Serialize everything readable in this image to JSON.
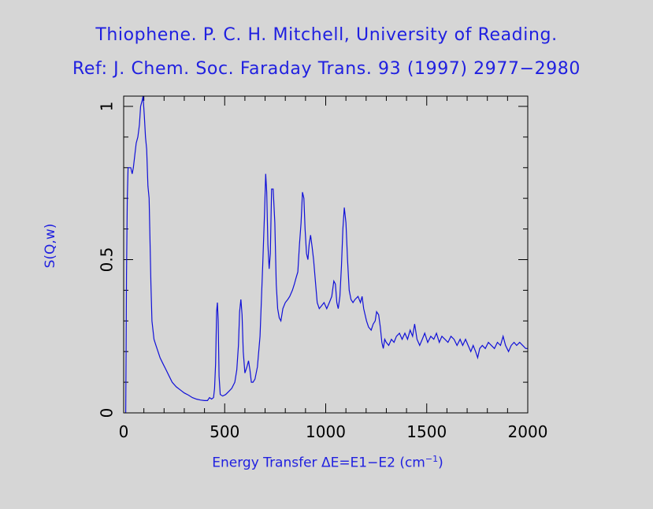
{
  "chart_data": {
    "type": "line",
    "title": "Thiophene. P. C. H. Mitchell, University of Reading.",
    "subtitle": "Ref: J. Chem. Soc. Faraday Trans. 93 (1997) 2977−2980",
    "ylabel": "S(Q,w)",
    "xlabel_prefix": "Energy Transfer ΔE=E1−E2 (cm",
    "xlabel_exponent": "−1",
    "xlabel_suffix": ")",
    "xlim": [
      0,
      2000
    ],
    "ylim": [
      0,
      1.0
    ],
    "grid": false,
    "line_color": "#1010d8",
    "x_ticks": [
      {
        "value": 0,
        "label": "0"
      },
      {
        "value": 500,
        "label": "500"
      },
      {
        "value": 1000,
        "label": "1000"
      },
      {
        "value": 1500,
        "label": "1500"
      },
      {
        "value": 2000,
        "label": "2000"
      }
    ],
    "y_ticks": [
      {
        "value": 0,
        "label": "0"
      },
      {
        "value": 0.5,
        "label": "0.5"
      },
      {
        "value": 1.0,
        "label": "1"
      }
    ],
    "series": [
      {
        "points": [
          [
            10,
            0
          ],
          [
            12,
            0.2
          ],
          [
            14,
            0.45
          ],
          [
            18,
            0.7
          ],
          [
            22,
            0.8
          ],
          [
            35,
            0.8
          ],
          [
            42,
            0.78
          ],
          [
            48,
            0.8
          ],
          [
            55,
            0.84
          ],
          [
            62,
            0.88
          ],
          [
            70,
            0.9
          ],
          [
            78,
            0.94
          ],
          [
            84,
            1.0
          ],
          [
            92,
            1.02
          ],
          [
            96,
            1.04
          ],
          [
            102,
            0.97
          ],
          [
            108,
            0.9
          ],
          [
            114,
            0.86
          ],
          [
            120,
            0.74
          ],
          [
            126,
            0.7
          ],
          [
            130,
            0.58
          ],
          [
            135,
            0.42
          ],
          [
            140,
            0.3
          ],
          [
            150,
            0.24
          ],
          [
            160,
            0.22
          ],
          [
            170,
            0.2
          ],
          [
            180,
            0.18
          ],
          [
            195,
            0.16
          ],
          [
            210,
            0.14
          ],
          [
            225,
            0.12
          ],
          [
            240,
            0.1
          ],
          [
            260,
            0.085
          ],
          [
            280,
            0.075
          ],
          [
            300,
            0.065
          ],
          [
            320,
            0.058
          ],
          [
            340,
            0.05
          ],
          [
            360,
            0.045
          ],
          [
            380,
            0.042
          ],
          [
            400,
            0.04
          ],
          [
            415,
            0.04
          ],
          [
            425,
            0.05
          ],
          [
            435,
            0.045
          ],
          [
            445,
            0.05
          ],
          [
            450,
            0.08
          ],
          [
            455,
            0.16
          ],
          [
            460,
            0.33
          ],
          [
            464,
            0.36
          ],
          [
            468,
            0.3
          ],
          [
            472,
            0.12
          ],
          [
            478,
            0.06
          ],
          [
            490,
            0.055
          ],
          [
            505,
            0.06
          ],
          [
            520,
            0.07
          ],
          [
            535,
            0.08
          ],
          [
            550,
            0.1
          ],
          [
            560,
            0.14
          ],
          [
            568,
            0.22
          ],
          [
            574,
            0.33
          ],
          [
            580,
            0.37
          ],
          [
            586,
            0.32
          ],
          [
            592,
            0.2
          ],
          [
            600,
            0.13
          ],
          [
            610,
            0.15
          ],
          [
            618,
            0.17
          ],
          [
            625,
            0.14
          ],
          [
            632,
            0.1
          ],
          [
            640,
            0.1
          ],
          [
            650,
            0.11
          ],
          [
            662,
            0.15
          ],
          [
            675,
            0.25
          ],
          [
            688,
            0.48
          ],
          [
            697,
            0.65
          ],
          [
            703,
            0.78
          ],
          [
            708,
            0.72
          ],
          [
            714,
            0.55
          ],
          [
            720,
            0.47
          ],
          [
            726,
            0.52
          ],
          [
            732,
            0.73
          ],
          [
            740,
            0.73
          ],
          [
            748,
            0.62
          ],
          [
            755,
            0.42
          ],
          [
            762,
            0.34
          ],
          [
            770,
            0.31
          ],
          [
            778,
            0.3
          ],
          [
            788,
            0.34
          ],
          [
            800,
            0.36
          ],
          [
            812,
            0.37
          ],
          [
            822,
            0.38
          ],
          [
            835,
            0.4
          ],
          [
            845,
            0.42
          ],
          [
            853,
            0.44
          ],
          [
            862,
            0.46
          ],
          [
            870,
            0.55
          ],
          [
            878,
            0.62
          ],
          [
            885,
            0.72
          ],
          [
            892,
            0.7
          ],
          [
            898,
            0.6
          ],
          [
            905,
            0.52
          ],
          [
            912,
            0.5
          ],
          [
            918,
            0.55
          ],
          [
            925,
            0.58
          ],
          [
            933,
            0.54
          ],
          [
            940,
            0.5
          ],
          [
            950,
            0.42
          ],
          [
            958,
            0.36
          ],
          [
            968,
            0.34
          ],
          [
            980,
            0.35
          ],
          [
            992,
            0.36
          ],
          [
            1005,
            0.34
          ],
          [
            1018,
            0.36
          ],
          [
            1030,
            0.38
          ],
          [
            1040,
            0.43
          ],
          [
            1048,
            0.42
          ],
          [
            1055,
            0.36
          ],
          [
            1062,
            0.34
          ],
          [
            1070,
            0.38
          ],
          [
            1078,
            0.48
          ],
          [
            1085,
            0.6
          ],
          [
            1092,
            0.67
          ],
          [
            1100,
            0.62
          ],
          [
            1108,
            0.5
          ],
          [
            1116,
            0.4
          ],
          [
            1125,
            0.37
          ],
          [
            1135,
            0.36
          ],
          [
            1145,
            0.37
          ],
          [
            1160,
            0.38
          ],
          [
            1172,
            0.36
          ],
          [
            1180,
            0.38
          ],
          [
            1188,
            0.34
          ],
          [
            1195,
            0.32
          ],
          [
            1202,
            0.3
          ],
          [
            1212,
            0.28
          ],
          [
            1225,
            0.27
          ],
          [
            1235,
            0.29
          ],
          [
            1245,
            0.3
          ],
          [
            1252,
            0.33
          ],
          [
            1262,
            0.32
          ],
          [
            1270,
            0.28
          ],
          [
            1278,
            0.23
          ],
          [
            1285,
            0.21
          ],
          [
            1292,
            0.24
          ],
          [
            1300,
            0.23
          ],
          [
            1312,
            0.22
          ],
          [
            1325,
            0.24
          ],
          [
            1338,
            0.23
          ],
          [
            1350,
            0.25
          ],
          [
            1365,
            0.26
          ],
          [
            1378,
            0.24
          ],
          [
            1392,
            0.26
          ],
          [
            1405,
            0.24
          ],
          [
            1418,
            0.27
          ],
          [
            1430,
            0.25
          ],
          [
            1440,
            0.29
          ],
          [
            1452,
            0.24
          ],
          [
            1465,
            0.22
          ],
          [
            1478,
            0.24
          ],
          [
            1490,
            0.26
          ],
          [
            1505,
            0.23
          ],
          [
            1520,
            0.25
          ],
          [
            1535,
            0.24
          ],
          [
            1548,
            0.26
          ],
          [
            1562,
            0.23
          ],
          [
            1575,
            0.25
          ],
          [
            1590,
            0.24
          ],
          [
            1605,
            0.23
          ],
          [
            1620,
            0.25
          ],
          [
            1635,
            0.24
          ],
          [
            1650,
            0.22
          ],
          [
            1665,
            0.24
          ],
          [
            1678,
            0.22
          ],
          [
            1692,
            0.24
          ],
          [
            1705,
            0.22
          ],
          [
            1718,
            0.2
          ],
          [
            1730,
            0.22
          ],
          [
            1742,
            0.2
          ],
          [
            1752,
            0.18
          ],
          [
            1762,
            0.21
          ],
          [
            1775,
            0.22
          ],
          [
            1790,
            0.21
          ],
          [
            1805,
            0.23
          ],
          [
            1820,
            0.22
          ],
          [
            1835,
            0.21
          ],
          [
            1850,
            0.23
          ],
          [
            1865,
            0.22
          ],
          [
            1878,
            0.25
          ],
          [
            1890,
            0.22
          ],
          [
            1905,
            0.2
          ],
          [
            1918,
            0.22
          ],
          [
            1932,
            0.23
          ],
          [
            1945,
            0.22
          ],
          [
            1960,
            0.23
          ],
          [
            1975,
            0.22
          ],
          [
            1990,
            0.21
          ],
          [
            2000,
            0.21
          ]
        ]
      }
    ]
  }
}
